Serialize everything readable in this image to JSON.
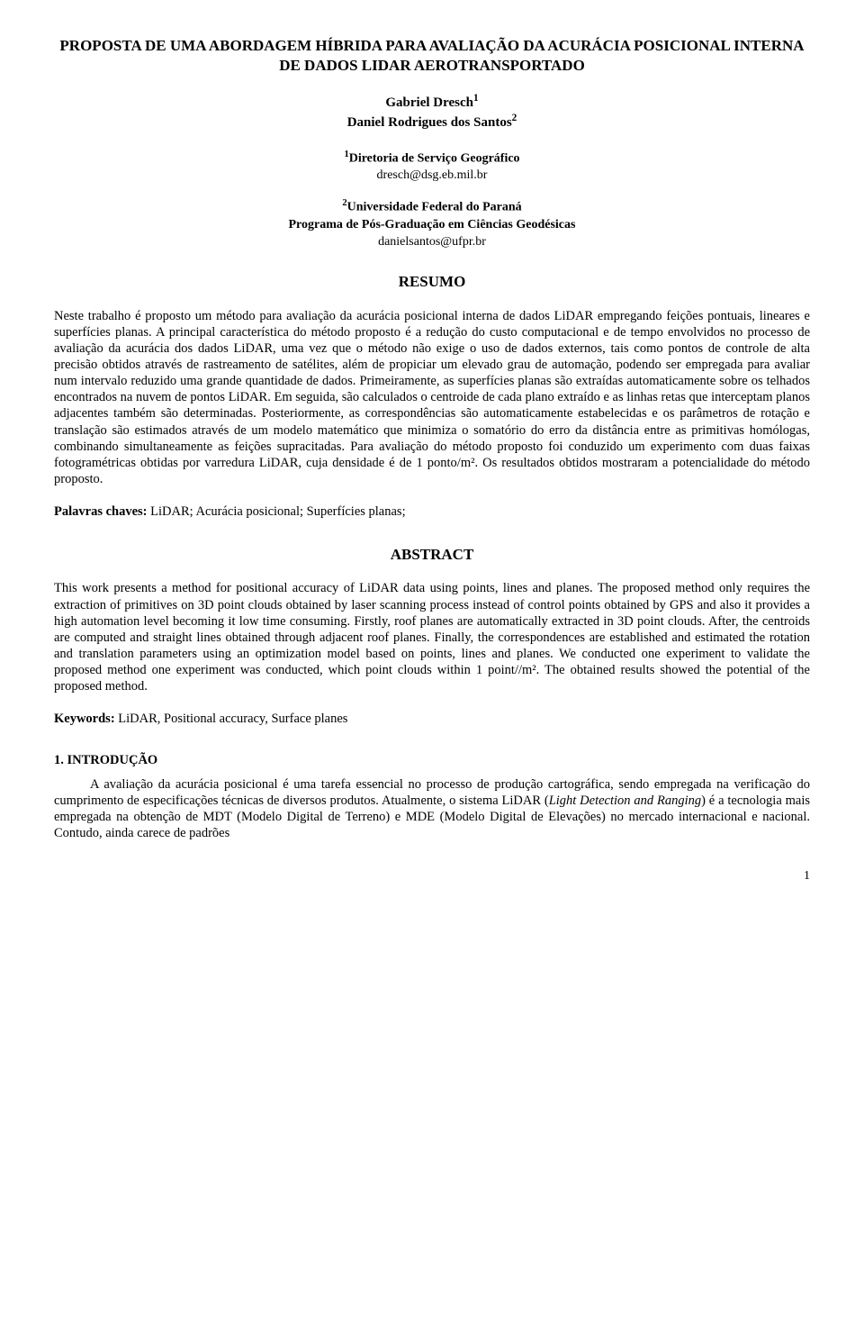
{
  "title": "PROPOSTA DE UMA ABORDAGEM HÍBRIDA PARA AVALIAÇÃO DA ACURÁCIA POSICIONAL INTERNA DE DADOS LIDAR AEROTRANSPORTADO",
  "authors": {
    "a1": "Gabriel Dresch",
    "a1_sup": "1",
    "a2": "Daniel Rodrigues dos Santos",
    "a2_sup": "2"
  },
  "affiliations": {
    "aff1_sup": "1",
    "aff1_name": "Diretoria de Serviço Geográfico",
    "aff1_email": "dresch@dsg.eb.mil.br",
    "aff2_sup": "2",
    "aff2_name": "Universidade Federal do Paraná",
    "aff2_line2": "Programa de Pós-Graduação em Ciências Geodésicas",
    "aff2_email": "danielsantos@ufpr.br"
  },
  "resumo_heading": "RESUMO",
  "resumo_body": "Neste trabalho é proposto um método para avaliação da acurácia posicional interna de dados LiDAR empregando feições pontuais, lineares e superfícies planas. A principal característica do método proposto é a redução do custo computacional e de tempo envolvidos no processo de avaliação da acurácia dos dados LiDAR, uma vez que o método não exige o uso de dados externos, tais como pontos de controle de alta precisão obtidos através de rastreamento de satélites, além de propiciar um elevado grau de automação, podendo ser empregada para avaliar num intervalo reduzido uma grande quantidade de dados. Primeiramente, as superfícies planas são extraídas automaticamente sobre os telhados encontrados na nuvem de pontos LiDAR. Em seguida, são calculados o centroide de cada plano extraído e as linhas retas que interceptam planos adjacentes também são determinadas. Posteriormente, as correspondências são automaticamente estabelecidas e os parâmetros de rotação e translação são estimados através de um modelo matemático que minimiza o somatório do erro da distância entre as primitivas homólogas, combinando simultaneamente as feições supracitadas. Para avaliação do método proposto foi conduzido um experimento com duas faixas fotogramétricas obtidas por varredura LiDAR, cuja densidade é de 1 ponto/m². Os resultados obtidos mostraram a potencialidade do método proposto.",
  "palavras_label": "Palavras chaves:",
  "palavras_value": " LiDAR; Acurácia posicional; Superfícies planas;",
  "abstract_heading": "ABSTRACT",
  "abstract_body": "This work presents a method for positional accuracy of LiDAR data using points, lines and planes. The proposed method only requires the extraction of primitives on 3D point clouds obtained by laser scanning process instead of control points obtained by GPS and also it provides a high automation level becoming it low time consuming. Firstly, roof planes are automatically extracted in 3D point clouds. After, the centroids are computed and straight lines obtained through adjacent roof planes. Finally, the correspondences are established and estimated the rotation and translation parameters using an optimization model based on points, lines and planes. We conducted one experiment to validate the proposed method one experiment was conducted, which point clouds within 1 point//m². The obtained results showed the potential of the proposed method.",
  "keywords_label": "Keywords:",
  "keywords_value": " LiDAR, Positional accuracy, Surface planes",
  "section1_heading": "1. INTRODUÇÃO",
  "section1_body_part1": "A avaliação da acurácia posicional é uma tarefa essencial no processo de produção cartográfica, sendo empregada na verificação do cumprimento de especificações técnicas de diversos produtos. Atualmente, o sistema LiDAR (",
  "section1_body_italic": "Light Detection and Ranging",
  "section1_body_part2": ") é a tecnologia mais empregada na obtenção de MDT (Modelo Digital de Terreno) e MDE (Modelo Digital de Elevações) no mercado internacional e nacional. Contudo, ainda carece de padrões",
  "page_number": "1"
}
